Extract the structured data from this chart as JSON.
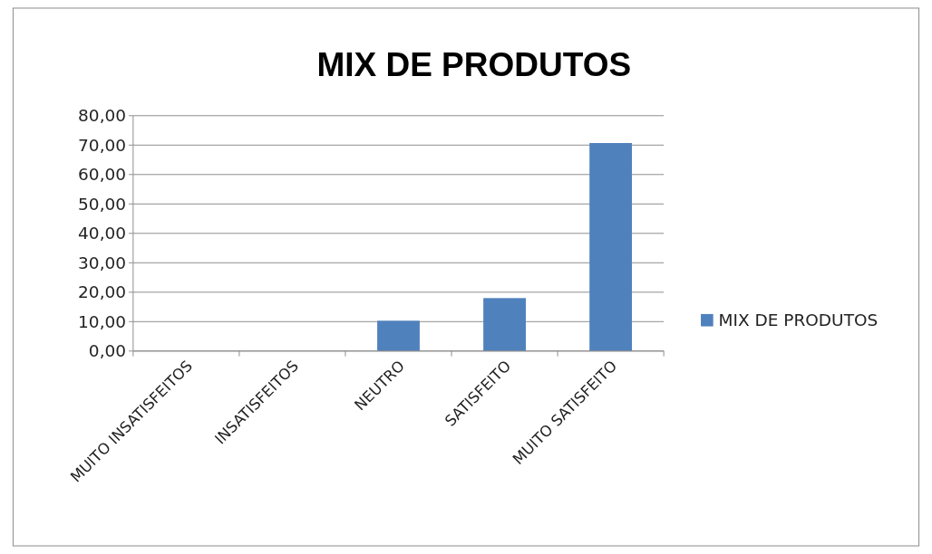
{
  "chart_data": {
    "type": "bar",
    "title": "MIX DE PRODUTOS",
    "categories": [
      "MUITO INSATISFEITOS",
      "INSATISFEITOS",
      "NEUTRO",
      "SATISFEITO",
      "MUITO SATISFEITO"
    ],
    "series": [
      {
        "name": "MIX DE PRODUTOS",
        "color": "#4f81bd",
        "values": [
          0,
          0,
          10.3,
          18,
          70.7
        ]
      }
    ],
    "ylim": [
      0,
      80
    ],
    "yticks": [
      {
        "value": 0,
        "label": "0,00"
      },
      {
        "value": 10,
        "label": "10,00"
      },
      {
        "value": 20,
        "label": "20,00"
      },
      {
        "value": 30,
        "label": "30,00"
      },
      {
        "value": 40,
        "label": "40,00"
      },
      {
        "value": 50,
        "label": "50,00"
      },
      {
        "value": 60,
        "label": "60,00"
      },
      {
        "value": 70,
        "label": "70,00"
      },
      {
        "value": 80,
        "label": "80,00"
      }
    ],
    "grid": "y",
    "legend": "right"
  }
}
